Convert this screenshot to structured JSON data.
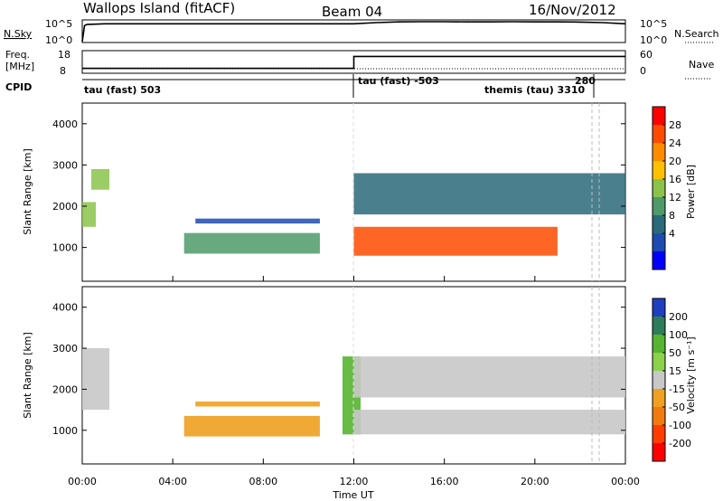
{
  "header": {
    "title": "Wallops Island (fitACF)",
    "beam": "Beam 04",
    "date": "16/Nov/2012"
  },
  "panels": {
    "nsky": {
      "label": "N.Sky",
      "right_label": "N.Search",
      "left_ticks": [
        "10^5",
        "10^0"
      ],
      "right_ticks": [
        "10^5",
        "10^0"
      ]
    },
    "freq": {
      "label_line1": "Freq.",
      "label_line2": "[MHz]",
      "right_label": "Nave",
      "left_ticks": [
        "18",
        "8"
      ],
      "right_ticks": [
        "60",
        "0"
      ]
    },
    "cpid": {
      "label": "CPID",
      "segments": [
        "tau (fast) 503",
        "tau (fast) -503",
        "themis (tau) 3310",
        "280"
      ]
    },
    "power": {
      "ylabel": "Slant Range [km]",
      "cb_label": "Power [dB]",
      "cb_ticks": [
        "28",
        "24",
        "20",
        "16",
        "12",
        "8",
        "4"
      ],
      "cb_colors": [
        "#ff0000",
        "#ff4b00",
        "#ff8c00",
        "#ffc000",
        "#8bc34a",
        "#4e9a6a",
        "#2a6a7a",
        "#1f4bb0",
        "#0000ff"
      ]
    },
    "velocity": {
      "ylabel": "Slant Range [km]",
      "cb_label": "Velocity [m s⁻¹]",
      "cb_ticks": [
        "200",
        "100",
        "50",
        "15",
        "-15",
        "-50",
        "-100",
        "-200"
      ],
      "cb_colors": [
        "#1f3fbf",
        "#2e7d5a",
        "#55b530",
        "#8ad24a",
        "#c8c8c8",
        "#f0a020",
        "#f07a10",
        "#ff3d00",
        "#ff0000"
      ]
    }
  },
  "xaxis": {
    "label": "Time UT",
    "ticks": [
      "00:00",
      "04:00",
      "08:00",
      "12:00",
      "16:00",
      "20:00",
      "00:00"
    ]
  },
  "chart_data": [
    {
      "type": "line",
      "name": "N.Sky",
      "x_unit": "hour UT",
      "x": [
        0,
        0.1,
        0.2,
        1,
        2,
        3,
        4,
        5,
        6,
        7,
        8,
        9,
        10,
        11,
        12,
        13,
        14,
        15,
        16,
        17,
        18,
        19,
        20,
        21,
        22,
        23,
        24
      ],
      "y": [
        0,
        10000,
        20000,
        30000,
        30000,
        30000,
        30000,
        30000,
        30000,
        30000,
        30000,
        30000,
        30000,
        30000,
        30000,
        60000,
        90000,
        100000,
        100000,
        90000,
        90000,
        100000,
        90000,
        90000,
        80000,
        60000,
        30000
      ],
      "ylim": [
        1,
        100000
      ],
      "yscale": "log"
    },
    {
      "type": "line",
      "name": "Freq. [MHz]",
      "x_unit": "hour UT",
      "x": [
        0,
        12,
        12,
        24
      ],
      "y": [
        10,
        10,
        16,
        16
      ],
      "ylim": [
        8,
        18
      ]
    },
    {
      "type": "heatmap",
      "title": "Power [dB]",
      "xlabel": "Time UT",
      "ylabel": "Slant Range [km]",
      "xlim": [
        0,
        24
      ],
      "ylim": [
        180,
        4500
      ],
      "colorbar_ticks": [
        28,
        24,
        20,
        16,
        12,
        8,
        4
      ],
      "features": [
        {
          "t_start": 0.0,
          "t_end": 0.6,
          "r_start": 1500,
          "r_end": 2100,
          "level_db": 18
        },
        {
          "t_start": 0.4,
          "t_end": 1.2,
          "r_start": 2400,
          "r_end": 2900,
          "level_db": 16
        },
        {
          "t_start": 4.5,
          "t_end": 10.5,
          "r_start": 850,
          "r_end": 1350,
          "level_db": 14
        },
        {
          "t_start": 5.0,
          "t_end": 10.5,
          "r_start": 1580,
          "r_end": 1700,
          "level_db": 8
        },
        {
          "t_start": 12.0,
          "t_end": 21.0,
          "r_start": 800,
          "r_end": 1500,
          "level_db": 26
        },
        {
          "t_start": 12.0,
          "t_end": 24.0,
          "r_start": 1800,
          "r_end": 2800,
          "level_db": 10
        }
      ]
    },
    {
      "type": "heatmap",
      "title": "Velocity [m s⁻¹]",
      "xlabel": "Time UT",
      "ylabel": "Slant Range [km]",
      "xlim": [
        0,
        24
      ],
      "ylim": [
        180,
        4500
      ],
      "colorbar_ticks": [
        200,
        100,
        50,
        15,
        -15,
        -50,
        -100,
        -200
      ],
      "features": [
        {
          "t_start": 0.0,
          "t_end": 1.2,
          "r_start": 1500,
          "r_end": 3000,
          "velocity": 0
        },
        {
          "t_start": 4.5,
          "t_end": 10.5,
          "r_start": 850,
          "r_end": 1350,
          "velocity": -40
        },
        {
          "t_start": 5.0,
          "t_end": 10.5,
          "r_start": 1580,
          "r_end": 1700,
          "velocity": -40
        },
        {
          "t_start": 11.5,
          "t_end": 12.3,
          "r_start": 900,
          "r_end": 2800,
          "velocity": 30
        },
        {
          "t_start": 12.0,
          "t_end": 24.0,
          "r_start": 900,
          "r_end": 1500,
          "velocity": 0
        },
        {
          "t_start": 12.0,
          "t_end": 24.0,
          "r_start": 1800,
          "r_end": 2800,
          "velocity": 10
        }
      ]
    }
  ]
}
